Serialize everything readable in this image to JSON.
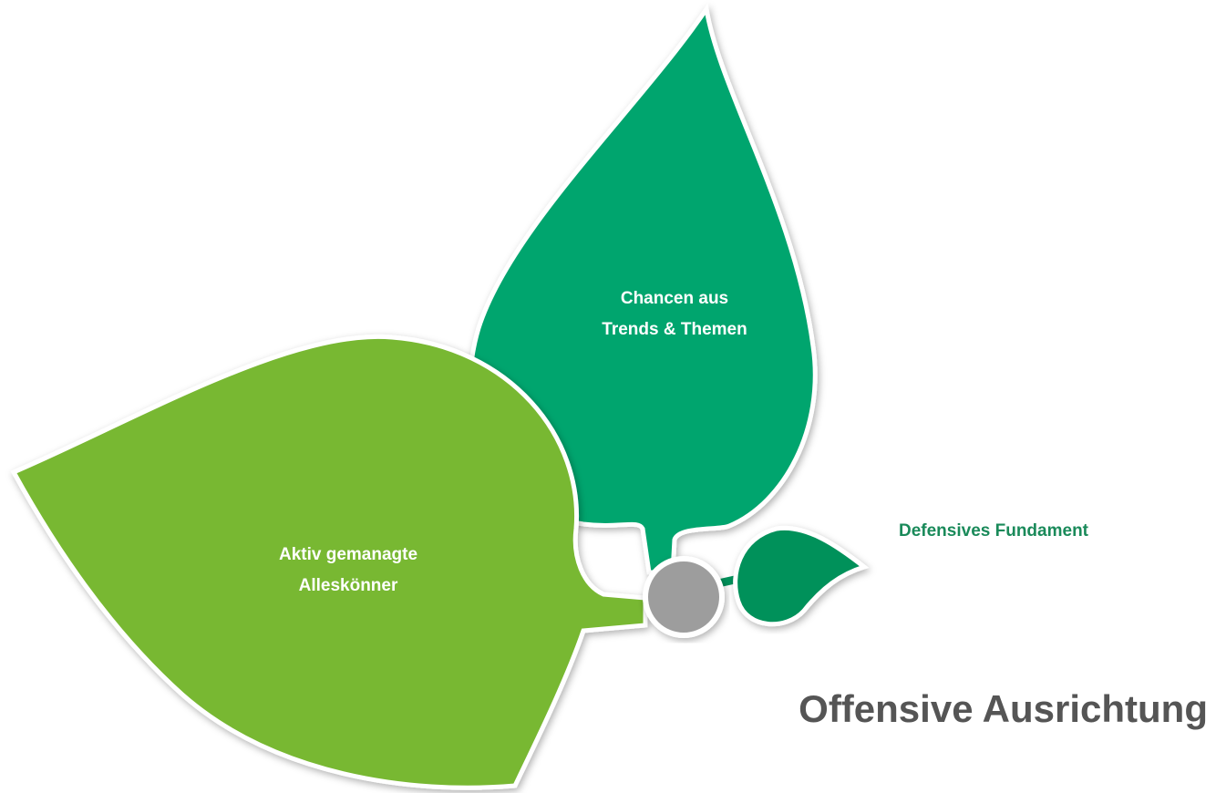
{
  "leaves": [
    {
      "label": [
        "Chancen aus",
        "Trends & Themen"
      ]
    },
    {
      "label": [
        "Aktiv gemanagte",
        "Alleskönner"
      ]
    },
    {
      "label": [
        "Defensives Fundament"
      ]
    }
  ],
  "title": "Offensive Ausrichtung"
}
